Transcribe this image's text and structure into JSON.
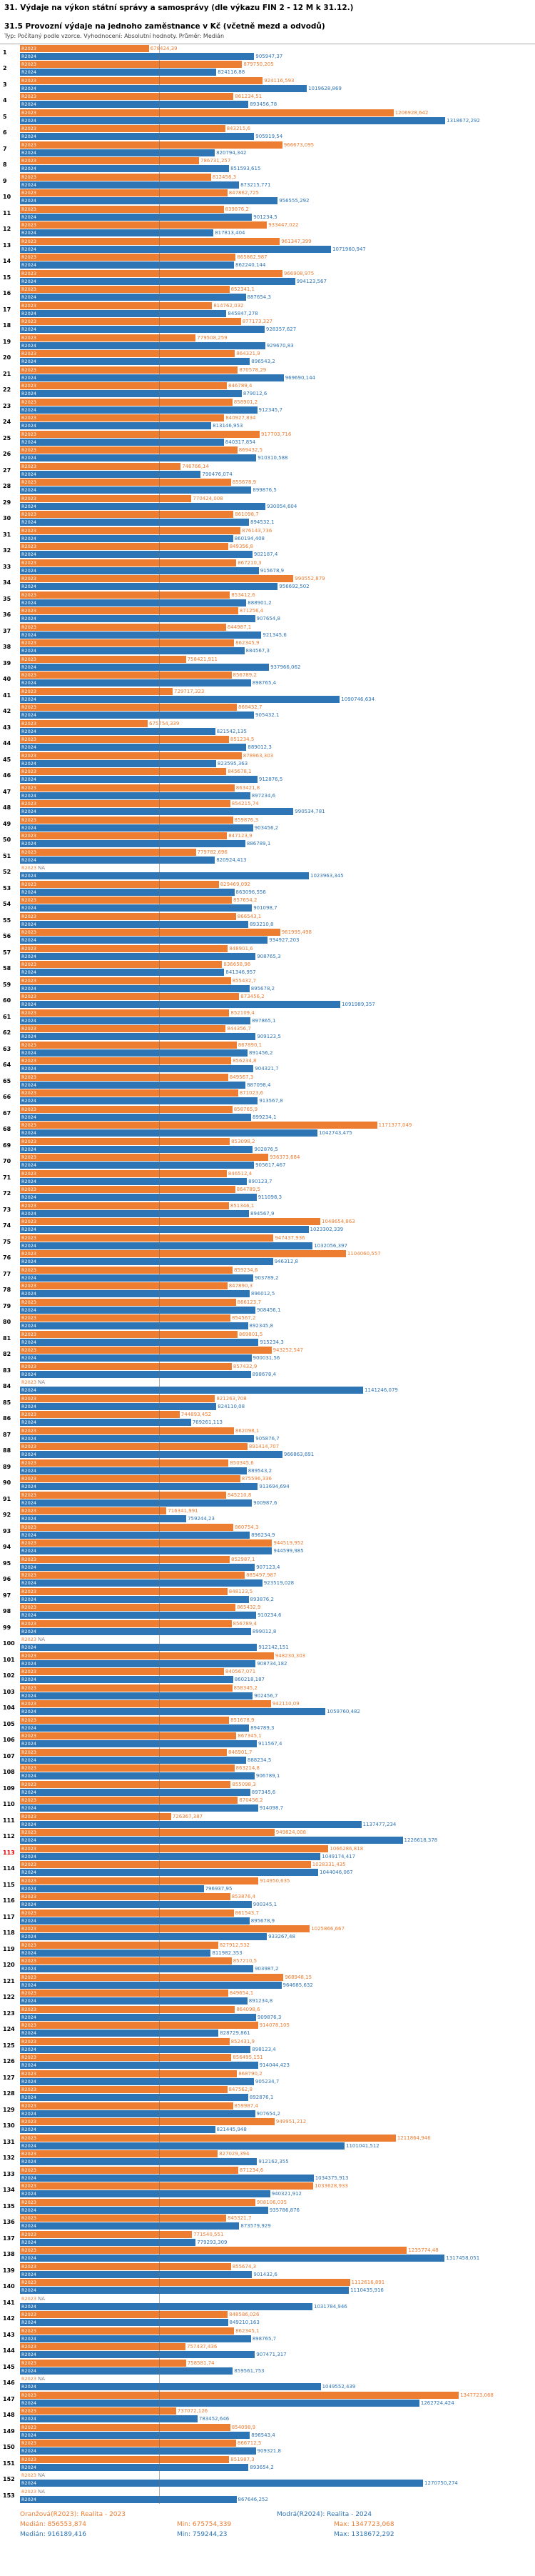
{
  "title": "31. Výdaje na výkon státní správy a samosprávy (dle výkazu FIN 2 - 12 M k 31.12.)",
  "subtitle": "31.5 Provozní výdaje na jednoho zaměstnance v Kč (včetně mezd a odvodů)",
  "meta_line": "Typ: Počítaný podle vzorce. Vyhodnocení: Absolutní hodnoty. Průměr: Medián",
  "legend": {
    "r2023": {
      "label": "Oranžová(R2023): Realita - 2023",
      "median": "Medián: 856553,874",
      "min": "Min: 675754,339",
      "max": "Max: 1347723,068",
      "color": "#ED7D31"
    },
    "r2024": {
      "label": "Modrá(R2024): Realita - 2024",
      "median": "Medián: 916189,416",
      "min": "Min: 759244,23",
      "max": "Max: 1318672,292",
      "color": "#2E75B6"
    }
  },
  "chart_data": {
    "type": "bar",
    "orientation": "horizontal",
    "grid": "single vertical reference line",
    "gridline_value": 700000,
    "xlim": [
      400000,
      1400000
    ],
    "na_text": "NA",
    "red_categories": [
      113
    ],
    "categories": [
      1,
      2,
      3,
      4,
      5,
      6,
      7,
      8,
      9,
      10,
      11,
      12,
      13,
      14,
      15,
      16,
      17,
      18,
      19,
      20,
      21,
      22,
      23,
      24,
      25,
      26,
      27,
      28,
      29,
      30,
      31,
      32,
      33,
      34,
      35,
      36,
      37,
      38,
      39,
      40,
      41,
      42,
      43,
      44,
      45,
      46,
      47,
      48,
      49,
      50,
      51,
      52,
      53,
      54,
      55,
      56,
      57,
      58,
      59,
      60,
      61,
      62,
      63,
      64,
      65,
      66,
      67,
      68,
      69,
      70,
      71,
      72,
      73,
      74,
      75,
      76,
      77,
      78,
      79,
      80,
      81,
      82,
      83,
      84,
      85,
      86,
      87,
      88,
      89,
      90,
      91,
      92,
      93,
      94,
      95,
      96,
      97,
      98,
      99,
      100,
      101,
      102,
      103,
      104,
      105,
      106,
      107,
      108,
      109,
      110,
      111,
      112,
      113,
      114,
      115,
      116,
      117,
      118,
      119,
      120,
      121,
      122,
      123,
      124,
      125,
      126,
      127,
      128,
      129,
      130,
      131,
      132,
      133,
      134,
      135,
      136,
      137,
      138,
      139,
      140,
      141,
      142,
      143,
      144,
      145,
      146,
      147,
      148,
      149,
      150,
      151,
      152,
      153
    ],
    "series": [
      {
        "key": "R2023",
        "name": "Realita - 2023",
        "color": "#ED7D31",
        "values": [
          "678424,39",
          "879750,205",
          "924116,593",
          "861234,51",
          "1206928,642",
          "843215,6",
          "966673,095",
          "786731,257",
          "812456,3",
          "847862,725",
          "839876,2",
          "933447,022",
          "961347,399",
          "865862,987",
          "966908,975",
          "852341,1",
          "814762,032",
          "877173,327",
          "779508,259",
          "864321,9",
          "870578,29",
          "846789,4",
          "858901,2",
          "840927,834",
          "917703,716",
          "869432,5",
          "746766,14",
          "855678,9",
          "770424,008",
          "861098,7",
          "876143,736",
          "849356,8",
          "867210,3",
          "990552,879",
          "853412,6",
          "871256,4",
          "844987,1",
          "862345,9",
          "758421,911",
          "856789,2",
          "729717,323",
          "868432,7",
          "675754,339",
          "851234,5",
          "878963,303",
          "845678,1",
          "863421,8",
          "854215,74",
          "859876,3",
          "847123,9",
          "779782,696",
          null,
          "829469,092",
          "857654,2",
          "866543,1",
          "961995,498",
          "848901,6",
          "836658,96",
          "855432,7",
          "873456,2",
          "852109,4",
          "844356,7",
          "867890,1",
          "856234,8",
          "849567,3",
          "871023,6",
          "858765,9",
          "1171377,049",
          "853098,2",
          "936373,684",
          "846512,4",
          "864789,5",
          "851346,1",
          "1048654,863",
          "947437,936",
          "1104060,557",
          "859234,6",
          "847890,3",
          "866123,7",
          "854567,2",
          "869801,5",
          "943252,547",
          "857432,9",
          null,
          "821263,708",
          "744893,452",
          "862098,1",
          "891414,707",
          "850345,6",
          "875596,336",
          "845210,8",
          "716341,991",
          "860754,3",
          "944519,952",
          "852987,1",
          "885497,987",
          "848123,5",
          "865432,9",
          "856789,4",
          null,
          "948230,303",
          "840567,071",
          "858345,2",
          "942110,09",
          "851678,9",
          "867345,1",
          "846901,7",
          "863214,8",
          "855098,3",
          "870456,2",
          "726367,387",
          "949824,008",
          "1066286,818",
          "1028331,435",
          "914950,635",
          "853876,4",
          "861543,7",
          "1025866,667",
          "827912,532",
          "857210,5",
          "968948,15",
          "849654,1",
          "864098,6",
          "914078,105",
          "852431,9",
          "856495,151",
          "868790,2",
          "847562,8",
          "859987,4",
          "949951,212",
          "1211864,946",
          "827029,394",
          "871234,6",
          "1033628,933",
          "908106,035",
          "845321,7",
          "771540,551",
          "1235774,48",
          "855674,3",
          "1112616,891",
          null,
          "848586,026",
          "862345,1",
          "757437,436",
          "758581,74",
          null,
          "1347723,068",
          "737072,126",
          "854098,9",
          "866712,5",
          "851987,3",
          null,
          null
        ]
      },
      {
        "key": "R2024",
        "name": "Realita - 2024",
        "color": "#2E75B6",
        "values": [
          "905947,37",
          "824116,88",
          "1019628,869",
          "893456,78",
          "1318672,292",
          "905919,54",
          "820794,342",
          "851593,615",
          "873215,771",
          "956555,292",
          "901234,5",
          "817813,404",
          "1071960,947",
          "862240,144",
          "994123,567",
          "887654,3",
          "845847,278",
          "928357,627",
          "929670,83",
          "896543,2",
          "969690,144",
          "879012,6",
          "912345,7",
          "813146,953",
          "840317,854",
          "910310,588",
          "790476,074",
          "899876,5",
          "930054,604",
          "894532,1",
          "860194,408",
          "902187,4",
          "915678,9",
          "956692,502",
          "888901,2",
          "907654,8",
          "921345,6",
          "884567,3",
          "937966,062",
          "898765,4",
          "1090746,634",
          "905432,1",
          "821542,135",
          "889012,3",
          "823595,363",
          "912876,5",
          "897234,6",
          "990534,781",
          "903456,2",
          "886789,1",
          "820924,413",
          "1023963,345",
          "863096,556",
          "901098,7",
          "893210,8",
          "934927,203",
          "908765,3",
          "841346,957",
          "895678,2",
          "1091989,357",
          "897865,1",
          "909123,5",
          "891456,2",
          "904321,7",
          "887098,4",
          "913567,8",
          "899234,1",
          "1042743,475",
          "902876,5",
          "905617,467",
          "890123,7",
          "911098,3",
          "894567,9",
          "1023302,339",
          "1032056,397",
          "946312,8",
          "903789,2",
          "896012,5",
          "908456,1",
          "892345,8",
          "915234,3",
          "900031,56",
          "898678,4",
          "1141246,079",
          "824110,08",
          "769261,113",
          "905876,7",
          "966863,691",
          "889543,2",
          "913694,694",
          "900987,6",
          "759244,23",
          "896234,9",
          "944599,985",
          "907123,4",
          "923519,028",
          "893876,2",
          "910234,6",
          "899012,8",
          "912142,151",
          "908734,182",
          "860218,187",
          "902456,7",
          "1059760,482",
          "894789,3",
          "911567,4",
          "888234,5",
          "906789,1",
          "897345,6",
          "914098,7",
          "1137477,234",
          "1226618,378",
          "1049174,417",
          "1044046,067",
          "796937,95",
          "900345,1",
          "895678,9",
          "933267,48",
          "811982,353",
          "903987,2",
          "964685,632",
          "891234,8",
          "909876,3",
          "828729,861",
          "898123,4",
          "914044,423",
          "905234,7",
          "892876,1",
          "907654,2",
          "821445,948",
          "1101041,512",
          "912162,355",
          "1034375,913",
          "940321,912",
          "935786,876",
          "873579,929",
          "779293,309",
          "1317458,051",
          "901432,6",
          "1110435,916",
          "1031784,946",
          "849210,163",
          "898765,7",
          "907471,317",
          "859561,753",
          "1049552,439",
          "1262724,424",
          "783452,646",
          "896543,4",
          "909321,8",
          "893654,2",
          "1270750,274",
          "867646,252"
        ]
      }
    ]
  }
}
